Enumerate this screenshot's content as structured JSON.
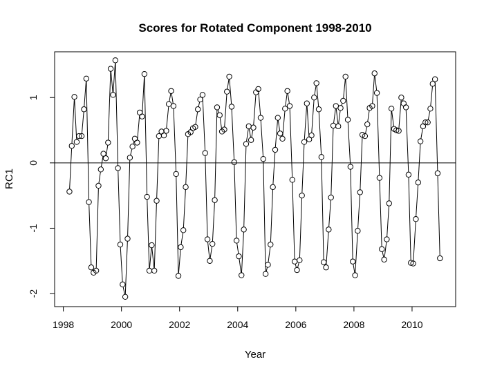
{
  "chart_data": {
    "type": "line",
    "title": "Scores for Rotated Component 1998-2010",
    "xlabel": "Year",
    "ylabel": "RC1",
    "xlim": [
      1997.7,
      2011.5
    ],
    "ylim": [
      -2.2,
      1.7
    ],
    "xticks": [
      "1998",
      "2000",
      "2002",
      "2004",
      "2006",
      "2008",
      "2010"
    ],
    "yticks": [
      "-2",
      "-1",
      "0",
      "1"
    ],
    "reference_line_y": 0,
    "grid": false,
    "legend": "none",
    "series": [
      {
        "marker": "open-circle",
        "points": [
          [
            1998.21,
            -0.44
          ],
          [
            1998.29,
            0.26
          ],
          [
            1998.38,
            1.01
          ],
          [
            1998.46,
            0.32
          ],
          [
            1998.54,
            0.41
          ],
          [
            1998.63,
            0.41
          ],
          [
            1998.71,
            0.82
          ],
          [
            1998.79,
            1.29
          ],
          [
            1998.88,
            -0.6
          ],
          [
            1998.96,
            -1.6
          ],
          [
            1999.04,
            -1.68
          ],
          [
            1999.13,
            -1.65
          ],
          [
            1999.21,
            -0.35
          ],
          [
            1999.29,
            -0.1
          ],
          [
            1999.38,
            0.14
          ],
          [
            1999.46,
            0.07
          ],
          [
            1999.54,
            0.31
          ],
          [
            1999.63,
            1.44
          ],
          [
            1999.71,
            1.04
          ],
          [
            1999.79,
            1.57
          ],
          [
            1999.88,
            -0.08
          ],
          [
            1999.96,
            -1.25
          ],
          [
            2000.04,
            -1.86
          ],
          [
            2000.13,
            -2.05
          ],
          [
            2000.21,
            -1.16
          ],
          [
            2000.29,
            0.08
          ],
          [
            2000.38,
            0.25
          ],
          [
            2000.46,
            0.37
          ],
          [
            2000.54,
            0.31
          ],
          [
            2000.63,
            0.77
          ],
          [
            2000.71,
            0.71
          ],
          [
            2000.79,
            1.36
          ],
          [
            2000.88,
            -0.52
          ],
          [
            2000.96,
            -1.65
          ],
          [
            2001.04,
            -1.26
          ],
          [
            2001.13,
            -1.65
          ],
          [
            2001.21,
            -0.58
          ],
          [
            2001.29,
            0.41
          ],
          [
            2001.38,
            0.48
          ],
          [
            2001.46,
            0.42
          ],
          [
            2001.54,
            0.49
          ],
          [
            2001.63,
            0.9
          ],
          [
            2001.71,
            1.1
          ],
          [
            2001.79,
            0.87
          ],
          [
            2001.88,
            -0.17
          ],
          [
            2001.96,
            -1.73
          ],
          [
            2002.04,
            -1.29
          ],
          [
            2002.13,
            -1.03
          ],
          [
            2002.21,
            -0.37
          ],
          [
            2002.29,
            0.44
          ],
          [
            2002.38,
            0.47
          ],
          [
            2002.46,
            0.53
          ],
          [
            2002.54,
            0.55
          ],
          [
            2002.63,
            0.82
          ],
          [
            2002.71,
            0.97
          ],
          [
            2002.79,
            1.04
          ],
          [
            2002.88,
            0.15
          ],
          [
            2002.96,
            -1.17
          ],
          [
            2003.04,
            -1.5
          ],
          [
            2003.13,
            -1.24
          ],
          [
            2003.21,
            -0.57
          ],
          [
            2003.29,
            0.85
          ],
          [
            2003.38,
            0.73
          ],
          [
            2003.46,
            0.48
          ],
          [
            2003.54,
            0.51
          ],
          [
            2003.63,
            1.09
          ],
          [
            2003.71,
            1.32
          ],
          [
            2003.79,
            0.86
          ],
          [
            2003.88,
            0.01
          ],
          [
            2003.96,
            -1.19
          ],
          [
            2004.04,
            -1.43
          ],
          [
            2004.13,
            -1.72
          ],
          [
            2004.21,
            -1.02
          ],
          [
            2004.29,
            0.29
          ],
          [
            2004.38,
            0.56
          ],
          [
            2004.46,
            0.35
          ],
          [
            2004.54,
            0.54
          ],
          [
            2004.63,
            1.08
          ],
          [
            2004.71,
            1.13
          ],
          [
            2004.79,
            0.69
          ],
          [
            2004.88,
            0.06
          ],
          [
            2004.96,
            -1.7
          ],
          [
            2005.04,
            -1.56
          ],
          [
            2005.13,
            -1.25
          ],
          [
            2005.21,
            -0.37
          ],
          [
            2005.29,
            0.2
          ],
          [
            2005.38,
            0.69
          ],
          [
            2005.46,
            0.45
          ],
          [
            2005.54,
            0.37
          ],
          [
            2005.63,
            0.83
          ],
          [
            2005.71,
            1.1
          ],
          [
            2005.79,
            0.87
          ],
          [
            2005.88,
            -0.26
          ],
          [
            2005.96,
            -1.51
          ],
          [
            2006.04,
            -1.64
          ],
          [
            2006.13,
            -1.49
          ],
          [
            2006.21,
            -0.5
          ],
          [
            2006.29,
            0.32
          ],
          [
            2006.38,
            0.91
          ],
          [
            2006.46,
            0.36
          ],
          [
            2006.54,
            0.42
          ],
          [
            2006.63,
            1.0
          ],
          [
            2006.71,
            1.22
          ],
          [
            2006.79,
            0.82
          ],
          [
            2006.88,
            0.09
          ],
          [
            2006.96,
            -1.52
          ],
          [
            2007.04,
            -1.6
          ],
          [
            2007.13,
            -1.02
          ],
          [
            2007.21,
            -0.53
          ],
          [
            2007.29,
            0.57
          ],
          [
            2007.38,
            0.87
          ],
          [
            2007.46,
            0.56
          ],
          [
            2007.54,
            0.84
          ],
          [
            2007.63,
            0.95
          ],
          [
            2007.71,
            1.32
          ],
          [
            2007.79,
            0.66
          ],
          [
            2007.88,
            -0.06
          ],
          [
            2007.96,
            -1.51
          ],
          [
            2008.04,
            -1.72
          ],
          [
            2008.13,
            -1.04
          ],
          [
            2008.21,
            -0.45
          ],
          [
            2008.29,
            0.43
          ],
          [
            2008.38,
            0.41
          ],
          [
            2008.46,
            0.59
          ],
          [
            2008.54,
            0.84
          ],
          [
            2008.63,
            0.87
          ],
          [
            2008.71,
            1.37
          ],
          [
            2008.79,
            1.07
          ],
          [
            2008.88,
            -0.23
          ],
          [
            2008.96,
            -1.32
          ],
          [
            2009.04,
            -1.48
          ],
          [
            2009.13,
            -1.17
          ],
          [
            2009.21,
            -0.62
          ],
          [
            2009.29,
            0.83
          ],
          [
            2009.38,
            0.52
          ],
          [
            2009.46,
            0.5
          ],
          [
            2009.54,
            0.49
          ],
          [
            2009.63,
            1.0
          ],
          [
            2009.71,
            0.91
          ],
          [
            2009.79,
            0.85
          ],
          [
            2009.88,
            -0.18
          ],
          [
            2009.96,
            -1.53
          ],
          [
            2010.04,
            -1.54
          ],
          [
            2010.13,
            -0.86
          ],
          [
            2010.21,
            -0.3
          ],
          [
            2010.29,
            0.33
          ],
          [
            2010.38,
            0.56
          ],
          [
            2010.46,
            0.62
          ],
          [
            2010.54,
            0.62
          ],
          [
            2010.63,
            0.83
          ],
          [
            2010.71,
            1.21
          ],
          [
            2010.79,
            1.28
          ],
          [
            2010.88,
            -0.16
          ],
          [
            2010.96,
            -1.46
          ]
        ]
      }
    ]
  }
}
